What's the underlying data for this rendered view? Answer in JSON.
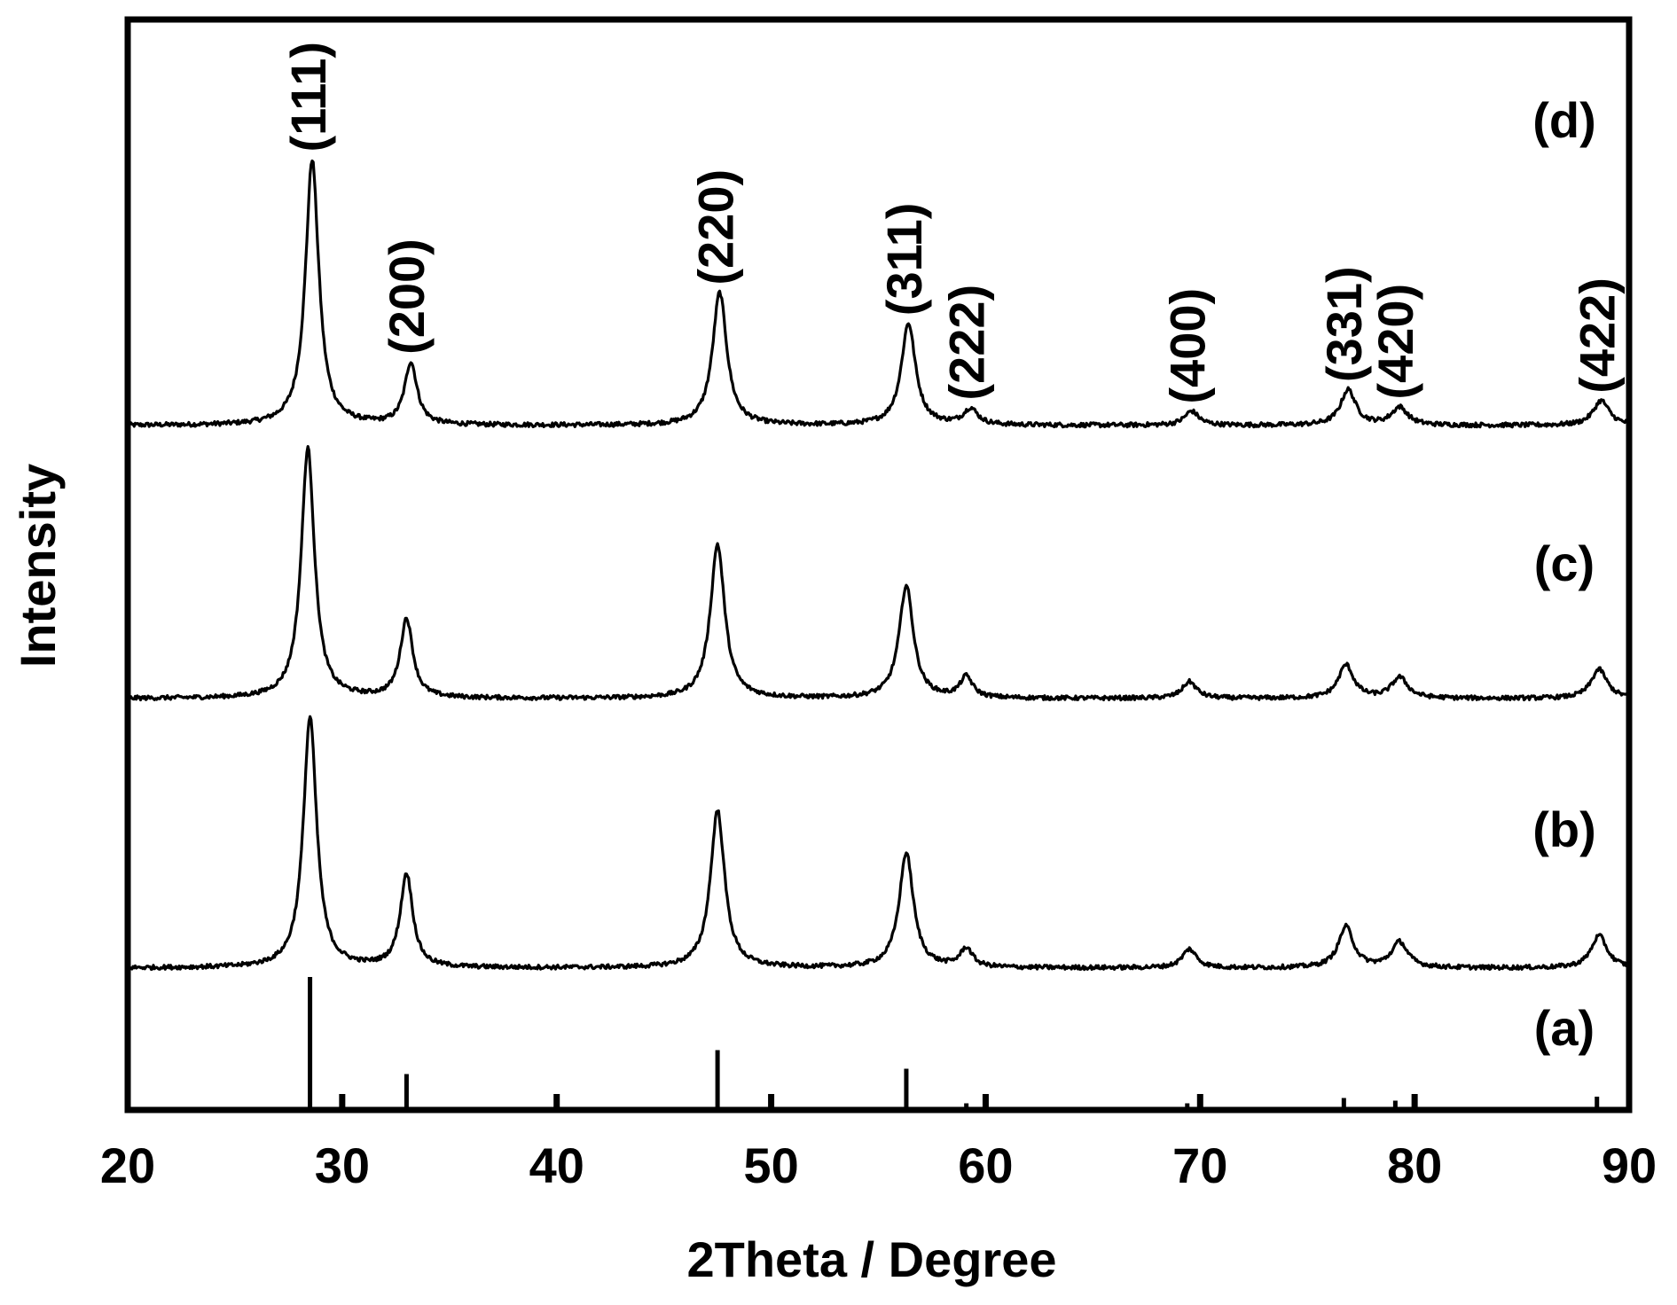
{
  "chart_data": {
    "type": "line",
    "title": "",
    "xlabel": "2Theta / Degree",
    "ylabel": "Intensity",
    "xlim": [
      20,
      90
    ],
    "x_ticks": [
      20,
      30,
      40,
      50,
      60,
      70,
      80,
      90
    ],
    "x_tick_labels": [
      "20",
      "30",
      "40",
      "50",
      "60",
      "70",
      "80",
      "90"
    ],
    "grid": false,
    "y_tick_labels_shown": false,
    "series": [
      {
        "name": "(d)",
        "baseline_intensity": 0,
        "peaks": [
          {
            "x": 28.6,
            "height": 300,
            "width": 0.75
          },
          {
            "x": 33.2,
            "height": 70,
            "width": 0.7
          },
          {
            "x": 47.6,
            "height": 150,
            "width": 0.8
          },
          {
            "x": 56.4,
            "height": 115,
            "width": 0.8
          },
          {
            "x": 59.3,
            "height": 18,
            "width": 0.8
          },
          {
            "x": 69.6,
            "height": 16,
            "width": 0.8
          },
          {
            "x": 76.9,
            "height": 40,
            "width": 0.85
          },
          {
            "x": 79.3,
            "height": 20,
            "width": 0.9
          },
          {
            "x": 88.7,
            "height": 28,
            "width": 0.9
          }
        ]
      },
      {
        "name": "(c)",
        "baseline_intensity": 0,
        "peaks": [
          {
            "x": 28.4,
            "height": 300,
            "width": 0.75
          },
          {
            "x": 33.0,
            "height": 95,
            "width": 0.7
          },
          {
            "x": 47.5,
            "height": 185,
            "width": 0.8
          },
          {
            "x": 56.3,
            "height": 135,
            "width": 0.8
          },
          {
            "x": 59.1,
            "height": 25,
            "width": 0.7
          },
          {
            "x": 69.5,
            "height": 20,
            "width": 0.8
          },
          {
            "x": 76.8,
            "height": 40,
            "width": 0.85
          },
          {
            "x": 79.3,
            "height": 25,
            "width": 0.9
          },
          {
            "x": 88.6,
            "height": 35,
            "width": 0.9
          }
        ]
      },
      {
        "name": "(b)",
        "baseline_intensity": 0,
        "peaks": [
          {
            "x": 28.5,
            "height": 295,
            "width": 0.75
          },
          {
            "x": 33.0,
            "height": 110,
            "width": 0.7
          },
          {
            "x": 47.5,
            "height": 185,
            "width": 0.8
          },
          {
            "x": 56.3,
            "height": 135,
            "width": 0.8
          },
          {
            "x": 59.1,
            "height": 22,
            "width": 0.7
          },
          {
            "x": 69.5,
            "height": 22,
            "width": 0.8
          },
          {
            "x": 76.8,
            "height": 48,
            "width": 0.85
          },
          {
            "x": 79.3,
            "height": 30,
            "width": 0.9
          },
          {
            "x": 88.6,
            "height": 38,
            "width": 0.9
          }
        ]
      }
    ],
    "reference_pattern": {
      "name": "(a)",
      "lines": [
        {
          "x": 28.5,
          "intensity": 100
        },
        {
          "x": 33.0,
          "intensity": 27
        },
        {
          "x": 47.5,
          "intensity": 45
        },
        {
          "x": 56.3,
          "intensity": 31
        },
        {
          "x": 59.1,
          "intensity": 5
        },
        {
          "x": 69.4,
          "intensity": 5
        },
        {
          "x": 76.7,
          "intensity": 9
        },
        {
          "x": 79.1,
          "intensity": 7
        },
        {
          "x": 88.5,
          "intensity": 10
        }
      ]
    },
    "peak_labels": [
      {
        "text": "(111)",
        "x": 28.6
      },
      {
        "text": "(200)",
        "x": 33.2
      },
      {
        "text": "(220)",
        "x": 47.6
      },
      {
        "text": "(311)",
        "x": 56.4
      },
      {
        "text": "(222)",
        "x": 59.3
      },
      {
        "text": "(400)",
        "x": 69.6
      },
      {
        "text": "(331)",
        "x": 76.9
      },
      {
        "text": "(420)",
        "x": 79.3
      },
      {
        "text": "(422)",
        "x": 88.7
      }
    ],
    "curve_labels": [
      "(d)",
      "(c)",
      "(b)",
      "(a)"
    ]
  }
}
